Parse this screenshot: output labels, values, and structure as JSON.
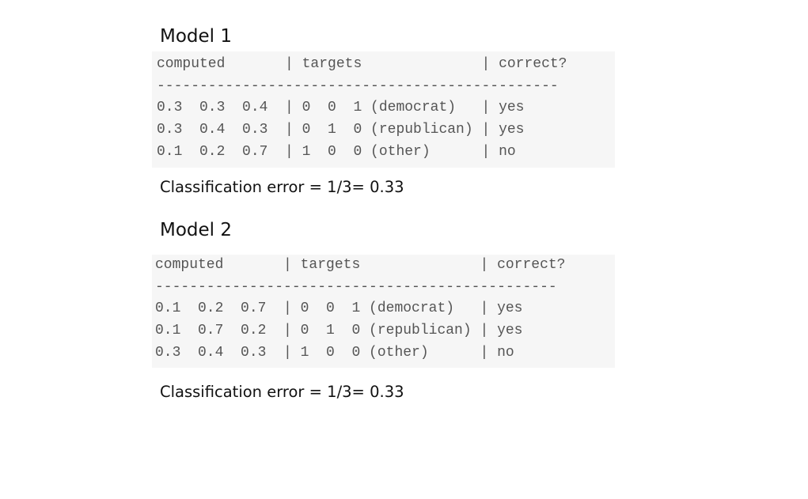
{
  "models": [
    {
      "title": "Model 1",
      "lines": [
        "computed       | targets              | correct?",
        "-----------------------------------------------",
        "0.3  0.3  0.4  | 0  0  1 (democrat)   | yes",
        "0.3  0.4  0.3  | 0  1  0 (republican) | yes",
        "0.1  0.2  0.7  | 1  0  0 (other)      | no"
      ],
      "error": "Classification error = 1/3= 0.33"
    },
    {
      "title": "Model 2",
      "lines": [
        "computed       | targets              | correct?",
        "-----------------------------------------------",
        "0.1  0.2  0.7  | 0  0  1 (democrat)   | yes",
        "0.1  0.7  0.2  | 0  1  0 (republican) | yes",
        "0.3  0.4  0.3  | 1  0  0 (other)      | no"
      ],
      "error": "Classification error = 1/3= 0.33"
    }
  ]
}
